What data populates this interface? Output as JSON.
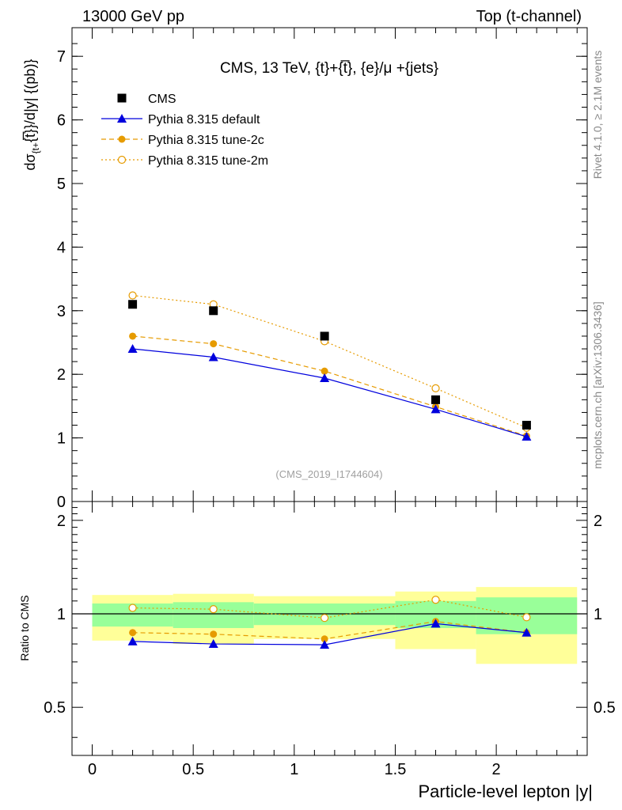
{
  "header": {
    "left": "13000 GeV pp",
    "right": "Top (t-channel)"
  },
  "side": {
    "rivet": "Rivet 4.1.0, ≥ 2.1M events",
    "mcplots": "mcplots.cern.ch [arXiv:1306.3436]"
  },
  "colors": {
    "data": "#000000",
    "default": "#0000dd",
    "tune2c": "#e69b00",
    "tune2m": "#e69b00",
    "band_inner": "#99ff99",
    "band_outer": "#ffff99"
  },
  "chart_data": [
    {
      "type": "line",
      "panel": "main",
      "title": "CMS, 13 TeV, {t}+{t̅}, {e}/μ +{jets}",
      "analysis_tag": "(CMS_2019_I1744604)",
      "ylabel": "dσ_{t+t̅}/d|y|  {(pb)}",
      "ylabel_parts": {
        "main": "dσ",
        "sub": "{t+",
        "after": "{t̅}}/d|y|  {(pb)}"
      },
      "xlim": [
        -0.1,
        2.45
      ],
      "ylim": [
        0,
        7.45
      ],
      "yticks": [
        0,
        1,
        2,
        3,
        4,
        5,
        6,
        7
      ],
      "legend": "top-left",
      "series": [
        {
          "name": "CMS",
          "style": "data",
          "x": [
            0.2,
            0.6,
            1.15,
            1.7,
            2.15
          ],
          "values": [
            3.1,
            3.0,
            2.6,
            1.6,
            1.2
          ]
        },
        {
          "name": "Pythia 8.315 default",
          "style": "default",
          "x": [
            0.2,
            0.6,
            1.15,
            1.7,
            2.15
          ],
          "values": [
            2.4,
            2.27,
            1.94,
            1.45,
            1.02
          ]
        },
        {
          "name": "Pythia 8.315 tune-2c",
          "style": "tune2c",
          "x": [
            0.2,
            0.6,
            1.15,
            1.7,
            2.15
          ],
          "values": [
            2.6,
            2.48,
            2.05,
            1.49,
            1.03
          ]
        },
        {
          "name": "Pythia 8.315 tune-2m",
          "style": "tune2m",
          "x": [
            0.2,
            0.6,
            1.15,
            1.7,
            2.15
          ],
          "values": [
            3.24,
            3.1,
            2.52,
            1.78,
            1.16
          ]
        }
      ]
    },
    {
      "type": "line",
      "panel": "ratio",
      "ylabel": "Ratio to CMS",
      "xlabel": "Particle-level lepton |y|",
      "xlim": [
        -0.1,
        2.45
      ],
      "ylim": [
        0.35,
        2.3
      ],
      "xticks": [
        0,
        0.5,
        1,
        1.5,
        2
      ],
      "xticklabels": [
        "0",
        "0.5",
        "1",
        "1.5",
        "2"
      ],
      "yticks": [
        0.5,
        1,
        2
      ],
      "yticklabels": [
        "0.5",
        "1",
        "2"
      ],
      "bins": [
        {
          "lo": 0.0,
          "hi": 0.4,
          "inner": [
            0.91,
            1.08
          ],
          "outer": [
            0.82,
            1.15
          ]
        },
        {
          "lo": 0.4,
          "hi": 0.8,
          "inner": [
            0.9,
            1.09
          ],
          "outer": [
            0.8,
            1.16
          ]
        },
        {
          "lo": 0.8,
          "hi": 1.5,
          "inner": [
            0.92,
            1.08
          ],
          "outer": [
            0.83,
            1.14
          ]
        },
        {
          "lo": 1.5,
          "hi": 1.9,
          "inner": [
            0.9,
            1.1
          ],
          "outer": [
            0.77,
            1.18
          ]
        },
        {
          "lo": 1.9,
          "hi": 2.4,
          "inner": [
            0.86,
            1.13
          ],
          "outer": [
            0.69,
            1.22
          ]
        }
      ],
      "series": [
        {
          "name": "Pythia 8.315 default",
          "style": "default",
          "x": [
            0.2,
            0.6,
            1.15,
            1.7,
            2.15
          ],
          "values": [
            0.815,
            0.8,
            0.795,
            0.93,
            0.87
          ]
        },
        {
          "name": "Pythia 8.315 tune-2c",
          "style": "tune2c",
          "x": [
            0.2,
            0.6,
            1.15,
            1.7,
            2.15
          ],
          "values": [
            0.87,
            0.86,
            0.83,
            0.945,
            0.87
          ]
        },
        {
          "name": "Pythia 8.315 tune-2m",
          "style": "tune2m",
          "x": [
            0.2,
            0.6,
            1.15,
            1.7,
            2.15
          ],
          "values": [
            1.045,
            1.035,
            0.97,
            1.11,
            0.975
          ]
        }
      ]
    }
  ]
}
